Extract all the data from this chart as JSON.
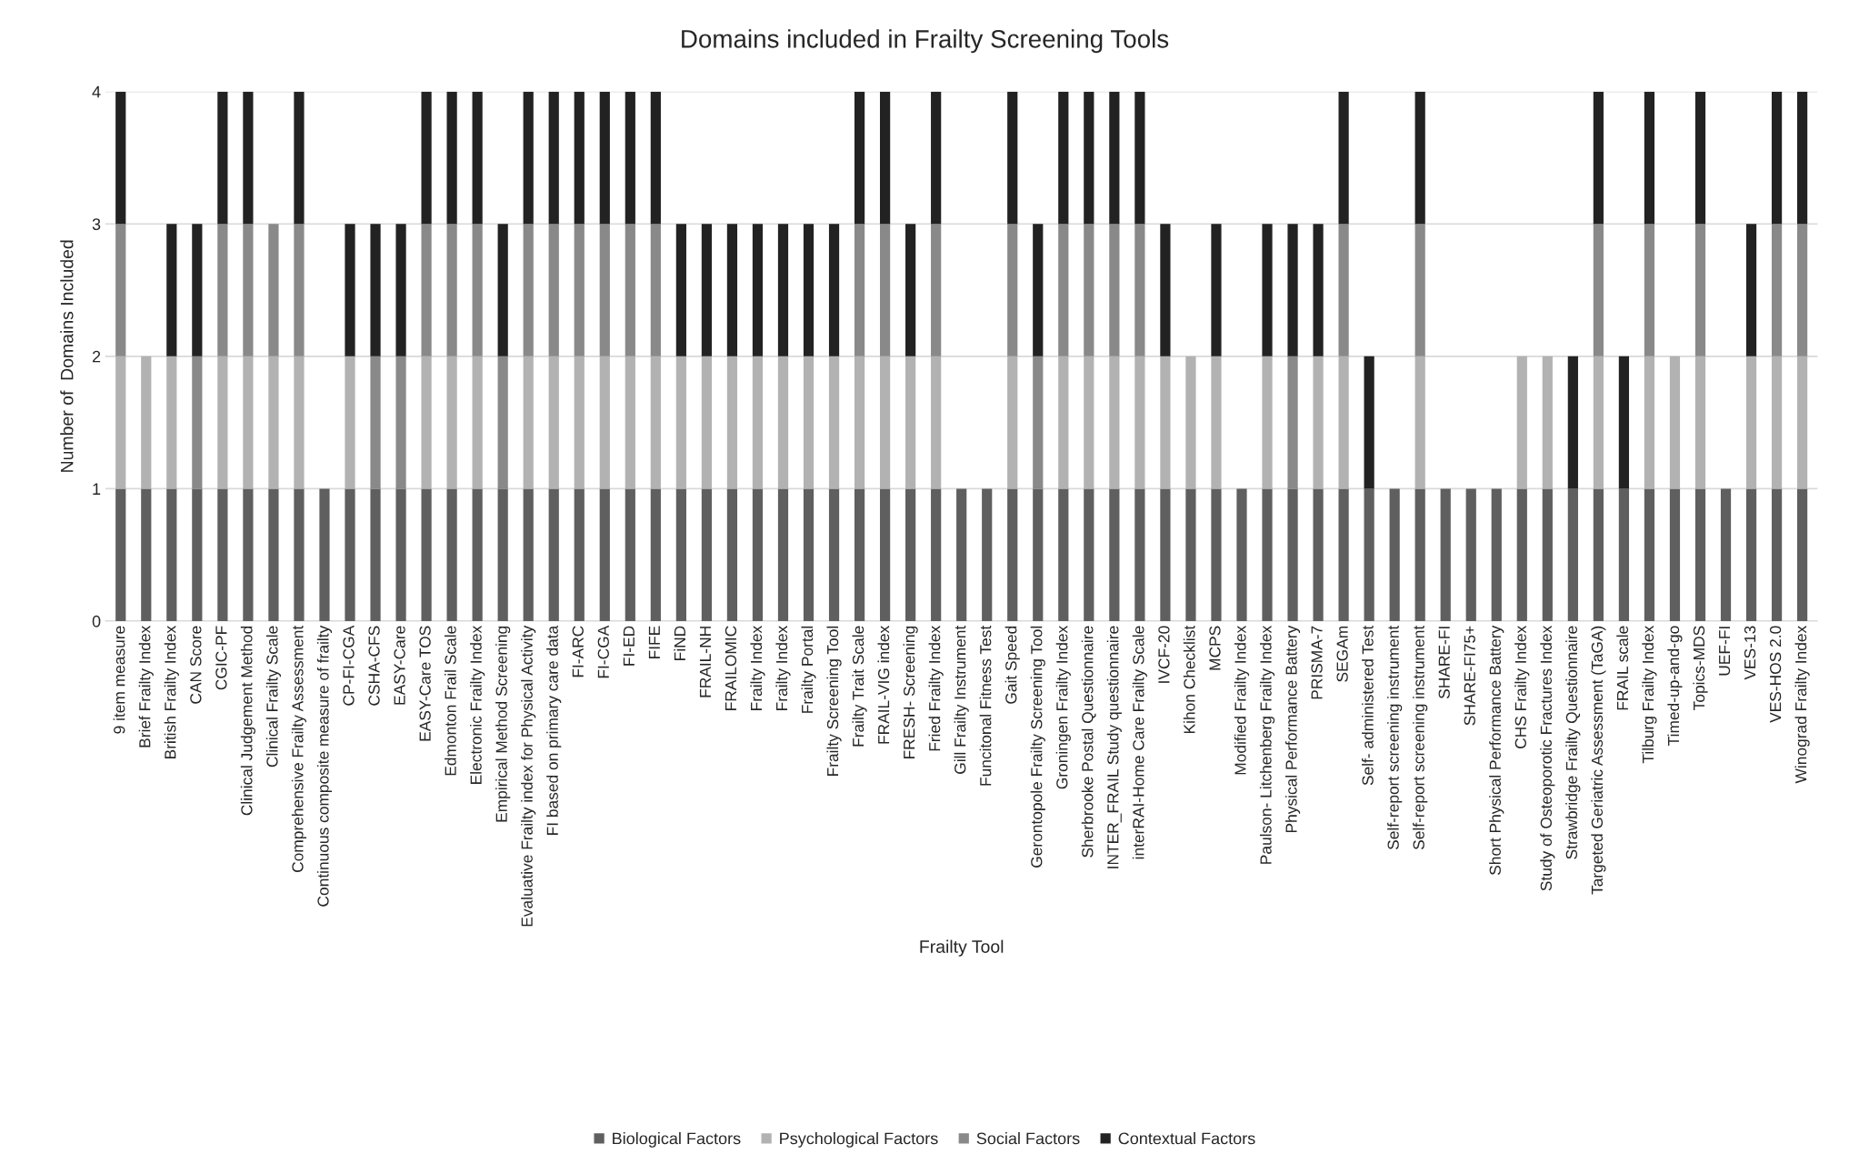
{
  "chart_data": {
    "type": "bar",
    "stacked": true,
    "title": "Domains included in Frailty Screening Tools",
    "xlabel": "Frailty Tool",
    "ylabel": "Number of  Domains Included",
    "categories": [
      "9 item measure",
      "Brief Frailty Index",
      "British Frailty Index",
      "CAN Score",
      "CGIC-PF",
      "Clinical Judgement Method",
      "Clinical Frailty Scale",
      "Comprehensive Frailty Assessment",
      "Continuous composite measure of frailty",
      "CP-FI-CGA",
      "CSHA-CFS",
      "EASY-Care",
      "EASY-Care TOS",
      "Edmonton Frail Scale",
      "Electronic Frailty Index",
      "Empirical Method Screening",
      "Evaluative Frailty index for Physical Activity",
      "FI based on primary care data",
      "FI-ARC",
      "FI-CGA",
      "FI-ED",
      "FIFE",
      "FiND",
      "FRAIL-NH",
      "FRAILOMIC",
      "Frailty Index",
      "Frailty Index",
      "Frailty Portal",
      "Frailty Screening Tool",
      "Frailty Trait Scale",
      "FRAIL-VIG index",
      "FRESH- Screening",
      "Fried Frailty Index",
      "Gill Frailty Instrument",
      "Funcitonal Fitness Test",
      "Gait Speed",
      "Gerontopole Frailty Screening Tool",
      "Groningen Frailty Index",
      "Sherbrooke Postal Questionnaire",
      "INTER_FRAIL Study questionnaire",
      "interRAI-Home Care Frailty Scale",
      "IVCF-20",
      "Kihon Checklist",
      "MCPS",
      "Modified Frailty Index",
      "Paulson- Litchenberg Frailty Index",
      "Physical Performance Battery",
      "PRISMA-7",
      "SEGAm",
      "Self- administered Test",
      "Self-report screening instrument",
      "Self-report screening instrument",
      "SHARE-FI",
      "SHARE-FI75+",
      "Short Physical Performance Battery",
      "CHS Frailty Index",
      "Study of Osteoporotic Fractures Index",
      "Strawbridge Frailty Questionnaire",
      "Targeted Geriatric Assessment (TaGA)",
      "FRAIL scale",
      "Tilburg Frailty Index",
      "Timed-up-and-go",
      "Topics-MDS",
      "UEF-FI",
      "VES-13",
      "VES-HOS 2.0",
      "Winograd Frailty Index"
    ],
    "series": [
      {
        "name": "Biological Factors",
        "color": "#5f5f5f",
        "values": [
          1,
          1,
          1,
          1,
          1,
          1,
          1,
          1,
          1,
          1,
          1,
          1,
          1,
          1,
          1,
          1,
          1,
          1,
          1,
          1,
          1,
          1,
          1,
          1,
          1,
          1,
          1,
          1,
          1,
          1,
          1,
          1,
          1,
          1,
          1,
          1,
          1,
          1,
          1,
          1,
          1,
          1,
          1,
          1,
          1,
          1,
          1,
          1,
          1,
          1,
          1,
          1,
          1,
          1,
          1,
          1,
          1,
          1,
          1,
          1,
          1,
          1,
          1,
          1,
          1,
          1,
          1
        ]
      },
      {
        "name": "Psychological Factors",
        "color": "#b2b2b2",
        "values": [
          1,
          1,
          1,
          0,
          1,
          1,
          1,
          1,
          0,
          1,
          0,
          0,
          1,
          1,
          1,
          0,
          1,
          1,
          1,
          1,
          1,
          1,
          1,
          1,
          1,
          1,
          1,
          1,
          1,
          1,
          1,
          1,
          1,
          0,
          0,
          1,
          0,
          1,
          1,
          1,
          1,
          1,
          1,
          1,
          0,
          1,
          0,
          1,
          1,
          0,
          0,
          1,
          0,
          0,
          0,
          1,
          1,
          0,
          1,
          0,
          1,
          1,
          1,
          0,
          1,
          1,
          1
        ]
      },
      {
        "name": "Social Factors",
        "color": "#898989",
        "values": [
          1,
          0,
          0,
          1,
          1,
          1,
          1,
          1,
          0,
          0,
          1,
          1,
          1,
          1,
          1,
          1,
          1,
          1,
          1,
          1,
          1,
          1,
          0,
          0,
          0,
          0,
          0,
          0,
          0,
          1,
          1,
          0,
          1,
          0,
          0,
          1,
          1,
          1,
          1,
          1,
          1,
          0,
          0,
          0,
          0,
          0,
          1,
          0,
          1,
          0,
          0,
          1,
          0,
          0,
          0,
          0,
          0,
          0,
          1,
          0,
          1,
          0,
          1,
          0,
          0,
          1,
          1
        ]
      },
      {
        "name": "Contextual Factors",
        "color": "#222222",
        "values": [
          1,
          0,
          1,
          1,
          1,
          1,
          0,
          1,
          0,
          1,
          1,
          1,
          1,
          1,
          1,
          1,
          1,
          1,
          1,
          1,
          1,
          1,
          1,
          1,
          1,
          1,
          1,
          1,
          1,
          1,
          1,
          1,
          1,
          0,
          0,
          1,
          1,
          1,
          1,
          1,
          1,
          1,
          0,
          1,
          0,
          1,
          1,
          1,
          1,
          1,
          0,
          1,
          0,
          0,
          0,
          0,
          0,
          1,
          1,
          1,
          1,
          0,
          1,
          0,
          1,
          1,
          1
        ]
      }
    ],
    "ylim": [
      0,
      4
    ],
    "yticks": [
      0,
      1,
      2,
      3,
      4
    ],
    "grid": "y",
    "legend": "bottom"
  }
}
